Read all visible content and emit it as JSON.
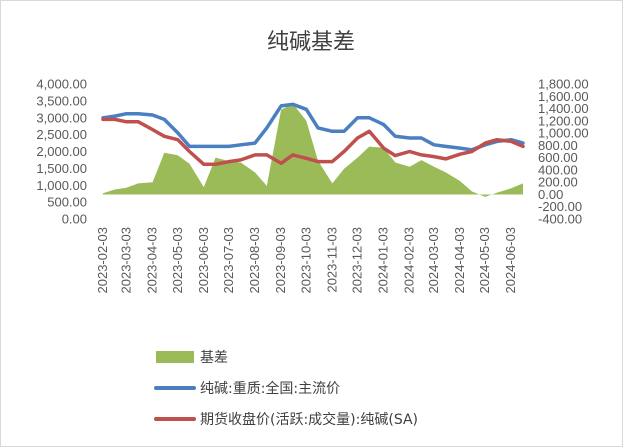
{
  "chart_data": {
    "type": "line",
    "title": "纯碱基差",
    "x_ticks": [
      "2023-02-03",
      "2023-03-03",
      "2023-04-03",
      "2023-05-03",
      "2023-06-03",
      "2023-07-03",
      "2023-08-03",
      "2023-09-03",
      "2023-10-03",
      "2023-11-03",
      "2023-12-03",
      "2024-01-03",
      "2024-02-03",
      "2024-03-03",
      "2024-04-03",
      "2024-05-03",
      "2024-06-03"
    ],
    "y_left_ticks": [
      "4,000.00",
      "3,500.00",
      "3,000.00",
      "2,500.00",
      "2,000.00",
      "1,500.00",
      "1,000.00",
      "500.00",
      "0.00"
    ],
    "y_left_range": [
      0,
      4000
    ],
    "y_right_ticks": [
      "1,800.00",
      "1,600.00",
      "1,400.00",
      "1,200.00",
      "1,000.00",
      "800.00",
      "600.00",
      "400.00",
      "200.00",
      "0.00",
      "-200.00",
      "-400.00"
    ],
    "y_right_range": [
      -400,
      1800
    ],
    "legend_position": "bottom",
    "grid": false,
    "x": [
      "2023-02-03",
      "2023-02-17",
      "2023-03-03",
      "2023-03-17",
      "2023-04-03",
      "2023-04-17",
      "2023-05-03",
      "2023-05-17",
      "2023-06-03",
      "2023-06-17",
      "2023-07-03",
      "2023-07-17",
      "2023-08-03",
      "2023-08-17",
      "2023-09-03",
      "2023-09-17",
      "2023-10-03",
      "2023-10-17",
      "2023-11-03",
      "2023-11-17",
      "2023-12-03",
      "2023-12-17",
      "2024-01-03",
      "2024-01-17",
      "2024-02-03",
      "2024-02-17",
      "2024-03-03",
      "2024-03-17",
      "2024-04-03",
      "2024-04-17",
      "2024-05-03",
      "2024-05-17",
      "2024-06-03",
      "2024-06-17"
    ],
    "series": [
      {
        "name": "基差",
        "axis": "right",
        "type": "area",
        "color": "#9bbb59",
        "values": [
          20,
          80,
          110,
          180,
          200,
          680,
          640,
          500,
          120,
          600,
          540,
          520,
          360,
          140,
          1380,
          1480,
          1200,
          550,
          180,
          420,
          600,
          780,
          760,
          520,
          450,
          560,
          450,
          360,
          220,
          50,
          -40,
          30,
          100,
          180
        ]
      },
      {
        "name": "纯碱:重质:全国:主流价",
        "axis": "left",
        "type": "line",
        "color": "#4a7fc1",
        "values": [
          3000,
          3050,
          3120,
          3120,
          3080,
          2950,
          2550,
          2150,
          2150,
          2150,
          2150,
          2200,
          2250,
          2700,
          3350,
          3400,
          3250,
          2700,
          2600,
          2600,
          3000,
          3000,
          2800,
          2450,
          2400,
          2400,
          2200,
          2150,
          2100,
          2050,
          2200,
          2300,
          2350,
          2250
        ]
      },
      {
        "name": "期货收盘价(活跃:成交量):纯碱(SA)",
        "axis": "left",
        "type": "line",
        "color": "#c0504d",
        "values": [
          2950,
          2950,
          2880,
          2880,
          2650,
          2450,
          2350,
          2000,
          1620,
          1620,
          1700,
          1750,
          1900,
          1900,
          1650,
          1900,
          1800,
          1700,
          1700,
          2000,
          2400,
          2600,
          2100,
          1880,
          2000,
          1900,
          1850,
          1780,
          1920,
          2000,
          2250,
          2350,
          2300,
          2150
        ]
      }
    ]
  }
}
